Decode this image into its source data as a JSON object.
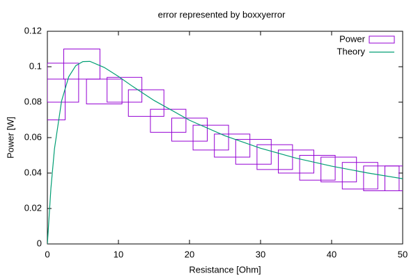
{
  "chart_data": {
    "type": "boxxyerror",
    "title": "error represented by boxxyerror",
    "xlabel": "Resistance [Ohm]",
    "ylabel": "Power [W]",
    "xlim": [
      0,
      50
    ],
    "xticks": [
      0,
      10,
      20,
      30,
      40,
      50
    ],
    "ylim": [
      0,
      0.12
    ],
    "yticks": [
      0,
      0.02,
      0.04,
      0.06,
      0.08,
      0.1,
      0.12
    ],
    "grid": false,
    "legend": "top-right",
    "series": [
      {
        "name": "Power",
        "type": "boxxyerror",
        "color": "#9400d3",
        "x": [
          0,
          2.2,
          4.85,
          8,
          10.85,
          13.9,
          17,
          20,
          23,
          26,
          29,
          32,
          35,
          38,
          41,
          44,
          47,
          50
        ],
        "xerr": [
          2.5,
          2.2,
          2.55,
          2.5,
          2.45,
          2.5,
          2.5,
          2.5,
          2.5,
          2.5,
          2.5,
          2.5,
          2.5,
          2.5,
          2.5,
          2.5,
          2.5,
          2.5
        ],
        "values": [
          0.0815,
          0.091,
          0.1015,
          0.086,
          0.087,
          0.0795,
          0.0695,
          0.0645,
          0.06,
          0.0555,
          0.052,
          0.049,
          0.0465,
          0.043,
          0.042,
          0.0385,
          0.037,
          0.037
        ],
        "yerr": [
          0.0115,
          0.011,
          0.0085,
          0.007,
          0.007,
          0.0075,
          0.0065,
          0.0065,
          0.007,
          0.0065,
          0.007,
          0.007,
          0.0065,
          0.007,
          0.007,
          0.0075,
          0.007,
          0.007
        ]
      },
      {
        "name": "Theory",
        "type": "line",
        "color": "#009e73",
        "x": [
          0,
          0.5,
          1,
          2,
          3,
          4,
          5,
          6,
          8,
          10,
          12,
          15,
          20,
          25,
          30,
          35,
          40,
          45,
          50
        ],
        "values": [
          0,
          0.0315,
          0.0537,
          0.0807,
          0.0943,
          0.1006,
          0.1029,
          0.103,
          0.0996,
          0.0945,
          0.0889,
          0.081,
          0.0698,
          0.061,
          0.054,
          0.0484,
          0.0439,
          0.0401,
          0.0368
        ]
      }
    ]
  }
}
